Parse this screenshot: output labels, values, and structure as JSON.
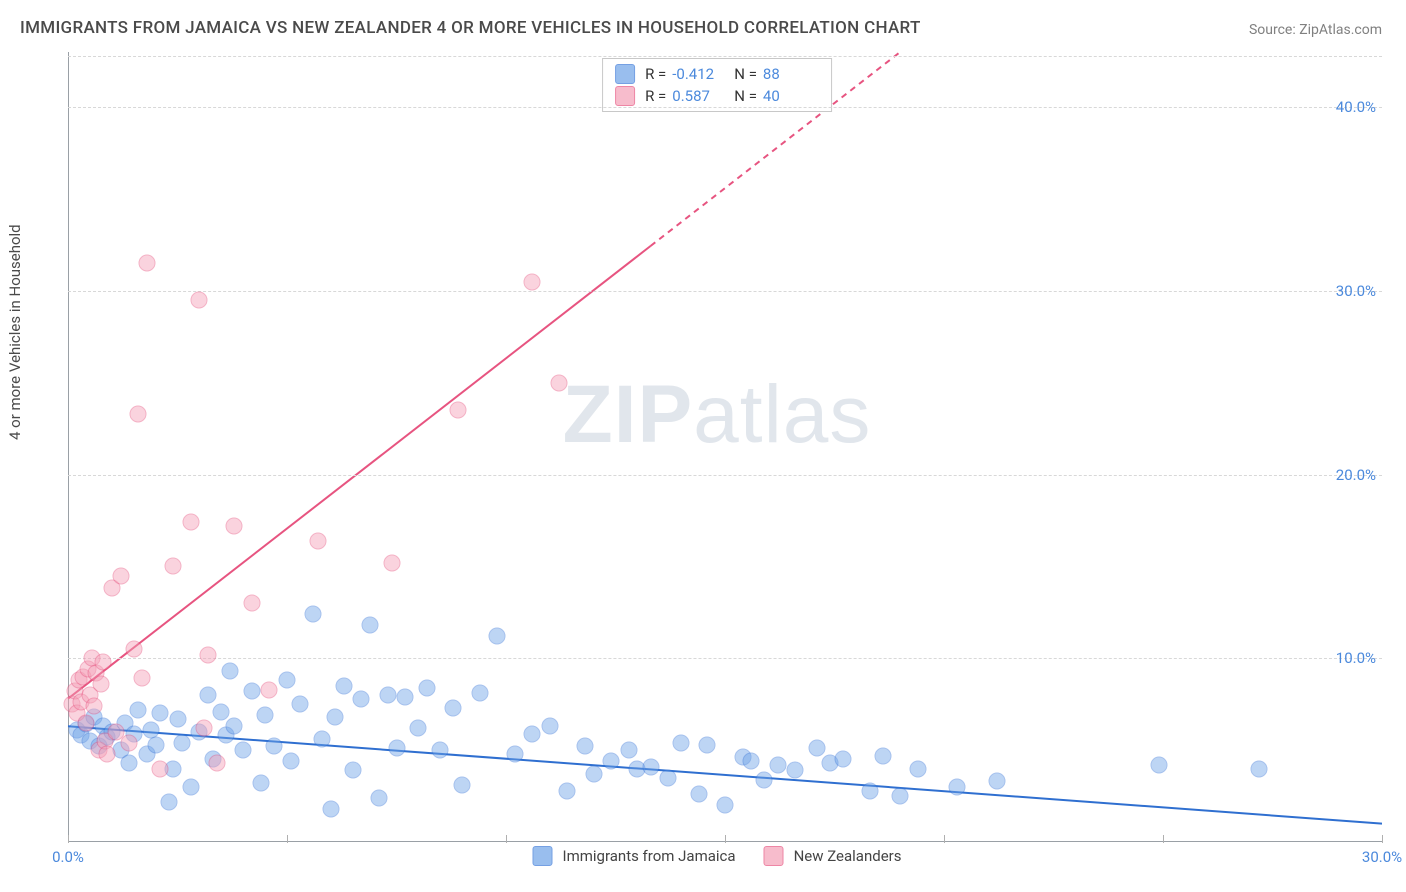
{
  "title": "IMMIGRANTS FROM JAMAICA VS NEW ZEALANDER 4 OR MORE VEHICLES IN HOUSEHOLD CORRELATION CHART",
  "source": "Source: ZipAtlas.com",
  "watermark_a": "ZIP",
  "watermark_b": "atlas",
  "y_label": "4 or more Vehicles in Household",
  "chart": {
    "type": "scatter",
    "background_color": "#ffffff",
    "grid_color": "#d8d8d8",
    "axis_color": "#9aa0a6",
    "xlim": [
      0,
      30
    ],
    "ylim": [
      0,
      43
    ],
    "x_ticks": [
      0,
      5,
      10,
      15,
      20,
      25,
      30
    ],
    "x_tick_labels": {
      "0": "0.0%",
      "30": "30.0%"
    },
    "y_ticks": [
      10,
      20,
      30,
      40
    ],
    "y_tick_labels": {
      "10": "10.0%",
      "20": "20.0%",
      "30": "30.0%",
      "40": "40.0%"
    },
    "marker_radius": 8.5,
    "marker_opacity": 0.45,
    "marker_stroke_opacity": 0.9,
    "line_width": 2,
    "series": [
      {
        "id": "jamaica",
        "label": "Immigrants from Jamaica",
        "color_fill": "#6ea3e8",
        "color_stroke": "#3b78d8",
        "R": "-0.412",
        "N": "88",
        "trend": {
          "x1": 0,
          "y1": 6.3,
          "x2": 30,
          "y2": 1.0,
          "color": "#2f6fd0",
          "dashed_from": null
        },
        "points": [
          [
            0.2,
            6.1
          ],
          [
            0.3,
            5.8
          ],
          [
            0.4,
            6.4
          ],
          [
            0.5,
            5.5
          ],
          [
            0.6,
            6.8
          ],
          [
            0.7,
            5.2
          ],
          [
            0.8,
            6.3
          ],
          [
            0.9,
            5.7
          ],
          [
            1.0,
            6.0
          ],
          [
            1.2,
            5.0
          ],
          [
            1.3,
            6.5
          ],
          [
            1.4,
            4.3
          ],
          [
            1.5,
            5.9
          ],
          [
            1.6,
            7.2
          ],
          [
            1.8,
            4.8
          ],
          [
            1.9,
            6.1
          ],
          [
            2.0,
            5.3
          ],
          [
            2.1,
            7.0
          ],
          [
            2.3,
            2.2
          ],
          [
            2.4,
            4.0
          ],
          [
            2.5,
            6.7
          ],
          [
            2.6,
            5.4
          ],
          [
            2.8,
            3.0
          ],
          [
            3.0,
            6.0
          ],
          [
            3.2,
            8.0
          ],
          [
            3.3,
            4.5
          ],
          [
            3.5,
            7.1
          ],
          [
            3.6,
            5.8
          ],
          [
            3.7,
            9.3
          ],
          [
            3.8,
            6.3
          ],
          [
            4.0,
            5.0
          ],
          [
            4.2,
            8.2
          ],
          [
            4.4,
            3.2
          ],
          [
            4.5,
            6.9
          ],
          [
            4.7,
            5.2
          ],
          [
            5.0,
            8.8
          ],
          [
            5.1,
            4.4
          ],
          [
            5.3,
            7.5
          ],
          [
            5.6,
            12.4
          ],
          [
            5.8,
            5.6
          ],
          [
            6.0,
            1.8
          ],
          [
            6.1,
            6.8
          ],
          [
            6.3,
            8.5
          ],
          [
            6.5,
            3.9
          ],
          [
            6.7,
            7.8
          ],
          [
            6.9,
            11.8
          ],
          [
            7.1,
            2.4
          ],
          [
            7.3,
            8.0
          ],
          [
            7.5,
            5.1
          ],
          [
            7.7,
            7.9
          ],
          [
            8.0,
            6.2
          ],
          [
            8.2,
            8.4
          ],
          [
            8.5,
            5.0
          ],
          [
            8.8,
            7.3
          ],
          [
            9.0,
            3.1
          ],
          [
            9.4,
            8.1
          ],
          [
            9.8,
            11.2
          ],
          [
            10.2,
            4.8
          ],
          [
            10.6,
            5.9
          ],
          [
            11.0,
            6.3
          ],
          [
            11.4,
            2.8
          ],
          [
            11.8,
            5.2
          ],
          [
            12.0,
            3.7
          ],
          [
            12.4,
            4.4
          ],
          [
            12.8,
            5.0
          ],
          [
            13.0,
            4.0
          ],
          [
            13.3,
            4.1
          ],
          [
            13.7,
            3.5
          ],
          [
            14.0,
            5.4
          ],
          [
            14.4,
            2.6
          ],
          [
            14.6,
            5.3
          ],
          [
            15.0,
            2.0
          ],
          [
            15.4,
            4.6
          ],
          [
            15.6,
            4.4
          ],
          [
            15.9,
            3.4
          ],
          [
            16.2,
            4.2
          ],
          [
            16.6,
            3.9
          ],
          [
            17.1,
            5.1
          ],
          [
            17.4,
            4.3
          ],
          [
            17.7,
            4.5
          ],
          [
            18.3,
            2.8
          ],
          [
            18.6,
            4.7
          ],
          [
            19.0,
            2.5
          ],
          [
            19.4,
            4.0
          ],
          [
            20.3,
            3.0
          ],
          [
            21.2,
            3.3
          ],
          [
            24.9,
            4.2
          ],
          [
            27.2,
            4.0
          ]
        ]
      },
      {
        "id": "newzealand",
        "label": "New Zealanders",
        "color_fill": "#f4a0b7",
        "color_stroke": "#e75480",
        "R": "0.587",
        "N": "40",
        "trend": {
          "x1": 0,
          "y1": 7.8,
          "x2": 19.0,
          "y2": 43.0,
          "color": "#e75480",
          "dashed_from_x": 13.3
        },
        "points": [
          [
            0.1,
            7.5
          ],
          [
            0.15,
            8.2
          ],
          [
            0.2,
            7.0
          ],
          [
            0.25,
            8.8
          ],
          [
            0.3,
            7.6
          ],
          [
            0.35,
            9.0
          ],
          [
            0.4,
            6.5
          ],
          [
            0.45,
            9.4
          ],
          [
            0.5,
            8.0
          ],
          [
            0.55,
            10.0
          ],
          [
            0.6,
            7.4
          ],
          [
            0.65,
            9.2
          ],
          [
            0.7,
            5.0
          ],
          [
            0.75,
            8.6
          ],
          [
            0.8,
            9.8
          ],
          [
            0.85,
            5.5
          ],
          [
            0.9,
            4.8
          ],
          [
            1.0,
            13.8
          ],
          [
            1.1,
            6.0
          ],
          [
            1.2,
            14.5
          ],
          [
            1.4,
            5.4
          ],
          [
            1.5,
            10.5
          ],
          [
            1.6,
            23.3
          ],
          [
            1.7,
            8.9
          ],
          [
            1.8,
            31.5
          ],
          [
            2.1,
            4.0
          ],
          [
            2.4,
            15.0
          ],
          [
            2.8,
            17.4
          ],
          [
            3.0,
            29.5
          ],
          [
            3.1,
            6.2
          ],
          [
            3.2,
            10.2
          ],
          [
            3.4,
            4.3
          ],
          [
            3.8,
            17.2
          ],
          [
            4.2,
            13.0
          ],
          [
            4.6,
            8.3
          ],
          [
            5.7,
            16.4
          ],
          [
            7.4,
            15.2
          ],
          [
            8.9,
            23.5
          ],
          [
            10.6,
            30.5
          ],
          [
            11.2,
            25.0
          ]
        ]
      }
    ]
  },
  "legend_top_labels": {
    "R": "R =",
    "N": "N ="
  }
}
